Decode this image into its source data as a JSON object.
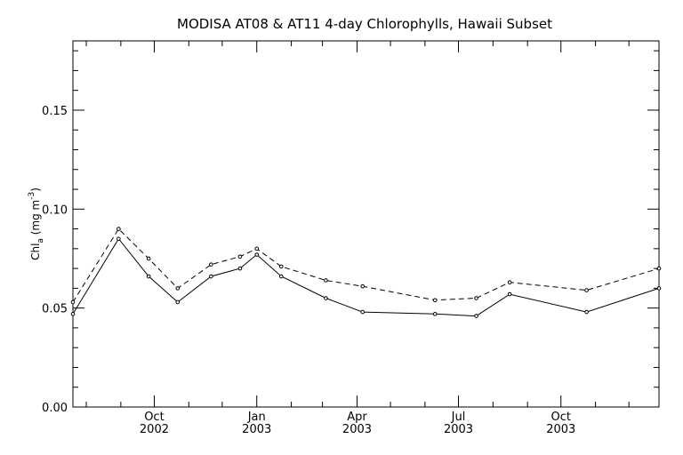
{
  "chart_data": {
    "type": "line",
    "title": "MODISA AT08 & AT11 4-day Chlorophylls, Hawaii Subset",
    "ylabel": {
      "base": "Chl",
      "sub": "a",
      "unit_open": " (mg m",
      "unit_sup": "-3",
      "unit_close": ")"
    },
    "xlabel": "",
    "ylim": [
      0,
      0.185
    ],
    "xlim": [
      "2002-07-20",
      "2003-12-28"
    ],
    "y_ticks": [
      0.0,
      0.05,
      0.1,
      0.15
    ],
    "y_tick_labels": [
      "0.00",
      "0.05",
      "0.10",
      "0.15"
    ],
    "x_ticks": [
      {
        "date": "2002-10-01",
        "month": "Oct",
        "year": "2002"
      },
      {
        "date": "2003-01-01",
        "month": "Jan",
        "year": "2003"
      },
      {
        "date": "2003-04-01",
        "month": "Apr",
        "year": "2003"
      },
      {
        "date": "2003-07-01",
        "month": "Jul",
        "year": "2003"
      },
      {
        "date": "2003-10-01",
        "month": "Oct",
        "year": "2003"
      }
    ],
    "grid": false,
    "legend": "none",
    "series": [
      {
        "style": "solid",
        "color": "#000000",
        "points": [
          [
            "2002-07-20",
            0.047
          ],
          [
            "2002-08-30",
            0.085
          ],
          [
            "2002-09-26",
            0.066
          ],
          [
            "2002-10-22",
            0.053
          ],
          [
            "2002-11-21",
            0.066
          ],
          [
            "2002-12-17",
            0.07
          ],
          [
            "2003-01-01",
            0.077
          ],
          [
            "2003-01-23",
            0.066
          ],
          [
            "2003-03-04",
            0.055
          ],
          [
            "2003-04-06",
            0.048
          ],
          [
            "2003-06-10",
            0.047
          ],
          [
            "2003-07-17",
            0.046
          ],
          [
            "2003-08-16",
            0.057
          ],
          [
            "2003-10-24",
            0.048
          ],
          [
            "2003-12-28",
            0.06
          ]
        ]
      },
      {
        "style": "dashed",
        "color": "#000000",
        "points": [
          [
            "2002-07-20",
            0.053
          ],
          [
            "2002-08-30",
            0.09
          ],
          [
            "2002-09-26",
            0.075
          ],
          [
            "2002-10-22",
            0.06
          ],
          [
            "2002-11-21",
            0.072
          ],
          [
            "2002-12-17",
            0.076
          ],
          [
            "2003-01-01",
            0.08
          ],
          [
            "2003-01-23",
            0.071
          ],
          [
            "2003-03-04",
            0.064
          ],
          [
            "2003-04-06",
            0.061
          ],
          [
            "2003-06-10",
            0.054
          ],
          [
            "2003-07-17",
            0.055
          ],
          [
            "2003-08-16",
            0.063
          ],
          [
            "2003-10-24",
            0.059
          ],
          [
            "2003-12-28",
            0.07
          ]
        ]
      }
    ]
  }
}
